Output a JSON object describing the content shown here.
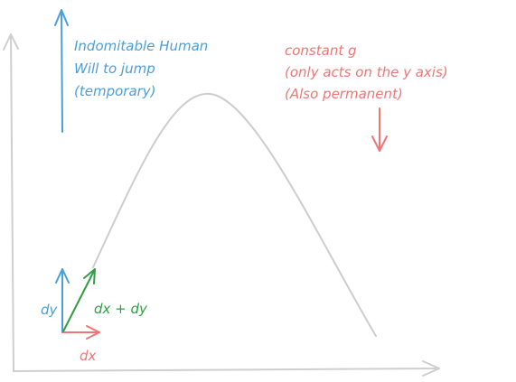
{
  "colors": {
    "axes": "#cfcfcf",
    "trajectory": "#cdcdcd",
    "blue": "#4a9fd8",
    "red": "#f07575",
    "green": "#2f9e44"
  },
  "annotations": {
    "jump_force": [
      "Indomitable Human",
      "Will to jump",
      "(temporary)"
    ],
    "gravity": [
      "constant g",
      "(only acts on the y axis)",
      "(Also permanent)"
    ],
    "dy_label": "dy",
    "dx_label": "dx",
    "dxdy_label": "dx + dy"
  }
}
